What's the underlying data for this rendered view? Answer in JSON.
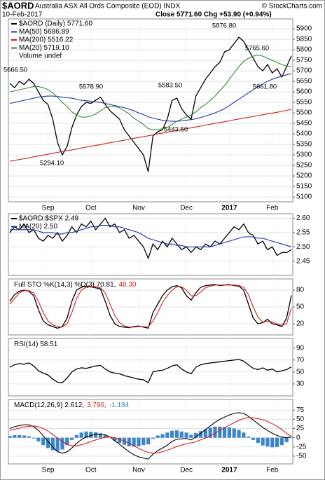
{
  "header": {
    "symbol": "$AORD",
    "name": "Australia ASX All Ords Composite (EOD) INDX",
    "date": "10-Feb-2017",
    "quote": "Close 5771.60  Chg +53.90 (+0.94%)",
    "credit": "© StockCharts.com"
  },
  "chart_data": [
    {
      "type": "line",
      "categories": [
        null,
        null,
        null,
        null,
        null,
        null,
        null,
        null,
        "Sep",
        null,
        null,
        null,
        null,
        null,
        null,
        null,
        null,
        "Oct",
        null,
        null,
        null,
        null,
        null,
        null,
        null,
        null,
        null,
        "Nov",
        null,
        null,
        null,
        null,
        null,
        null,
        null,
        null,
        null,
        "Dec",
        null,
        null,
        null,
        null,
        null,
        null,
        null,
        null,
        "2017",
        null,
        null,
        null,
        null,
        null,
        null,
        null,
        null,
        "Feb",
        null,
        null,
        null,
        null
      ],
      "ylim": [
        5077,
        5947
      ],
      "yticks": [
        5100,
        5150,
        5200,
        5250,
        5300,
        5350,
        5400,
        5450,
        5500,
        5550,
        5600,
        5650,
        5700,
        5750,
        5800,
        5850,
        5900
      ],
      "grid": true,
      "legend_note": "Volume undef",
      "annotations": [
        "5666.50",
        "5578.90",
        "5583.50",
        "5876.80",
        "5765.60",
        "5661.80",
        "5443.50",
        "5294.10"
      ],
      "series": [
        {
          "name": "$AORD (Daily) 5771.60",
          "color": "#000000",
          "values": [
            5640,
            5620,
            5650,
            5635,
            5660,
            5640,
            5600,
            5560,
            5540,
            5470,
            5360,
            5300,
            5340,
            5430,
            5490,
            5530,
            5550,
            5545,
            5560,
            5575,
            5540,
            5510,
            5490,
            5470,
            5420,
            5390,
            5360,
            5330,
            5300,
            5220,
            5390,
            5410,
            5420,
            5470,
            5560,
            5570,
            5520,
            5490,
            5470,
            5580,
            5620,
            5660,
            5690,
            5720,
            5740,
            5790,
            5800,
            5830,
            5860,
            5840,
            5800,
            5760,
            5720,
            5700,
            5730,
            5690,
            5710,
            5670,
            5720,
            5771.6
          ]
        },
        {
          "name": "MA(50) 5686.89",
          "color": "#1f2fa8",
          "values": [
            5545,
            5550,
            5555,
            5560,
            5565,
            5570,
            5575,
            5578,
            5580,
            5580,
            5578,
            5575,
            5572,
            5570,
            5565,
            5560,
            5558,
            5555,
            5552,
            5550,
            5545,
            5540,
            5535,
            5530,
            5525,
            5518,
            5510,
            5500,
            5492,
            5482,
            5475,
            5470,
            5465,
            5462,
            5460,
            5460,
            5462,
            5465,
            5468,
            5472,
            5478,
            5485,
            5492,
            5500,
            5510,
            5520,
            5535,
            5550,
            5565,
            5580,
            5595,
            5610,
            5625,
            5638,
            5650,
            5660,
            5668,
            5675,
            5681,
            5686.89
          ]
        },
        {
          "name": "MA(200) 5516.22",
          "color": "#cc1f1f",
          "values": [
            5270,
            5274,
            5278,
            5282,
            5286,
            5291,
            5295,
            5299,
            5303,
            5308,
            5312,
            5316,
            5320,
            5324,
            5328,
            5333,
            5337,
            5341,
            5345,
            5349,
            5354,
            5358,
            5362,
            5366,
            5370,
            5375,
            5379,
            5383,
            5387,
            5391,
            5395,
            5400,
            5404,
            5408,
            5412,
            5416,
            5421,
            5425,
            5429,
            5433,
            5437,
            5442,
            5446,
            5450,
            5454,
            5458,
            5462,
            5467,
            5471,
            5475,
            5479,
            5483,
            5487,
            5491,
            5495,
            5499,
            5503,
            5507,
            5512,
            5516.22
          ]
        },
        {
          "name": "MA(20) 5719.10",
          "color": "#2e8b2e",
          "values": [
            5600,
            5605,
            5610,
            5615,
            5620,
            5625,
            5625,
            5620,
            5610,
            5595,
            5575,
            5550,
            5530,
            5505,
            5490,
            5480,
            5480,
            5485,
            5495,
            5510,
            5525,
            5530,
            5530,
            5525,
            5510,
            5495,
            5475,
            5460,
            5445,
            5425,
            5420,
            5420,
            5425,
            5430,
            5445,
            5460,
            5470,
            5480,
            5490,
            5505,
            5525,
            5540,
            5560,
            5580,
            5605,
            5630,
            5660,
            5690,
            5720,
            5745,
            5760,
            5770,
            5775,
            5770,
            5760,
            5750,
            5740,
            5730,
            5722,
            5719.1
          ]
        }
      ]
    },
    {
      "type": "line",
      "ylim": [
        2.4,
        2.616
      ],
      "yticks": [
        {
          "value": 2.45,
          "label": "2.45"
        },
        {
          "value": 2.5,
          "label": "2.50"
        },
        {
          "value": 2.55,
          "label": "2.55"
        },
        {
          "value": 2.6,
          "label": "2.60"
        }
      ],
      "grid": true,
      "series": [
        {
          "name": "$AORD:$SPX 2.49",
          "color": "#000000",
          "values": [
            2.55,
            2.57,
            2.56,
            2.58,
            2.55,
            2.56,
            2.53,
            2.52,
            2.54,
            2.53,
            2.55,
            2.52,
            2.54,
            2.57,
            2.55,
            2.58,
            2.57,
            2.59,
            2.56,
            2.58,
            2.6,
            2.57,
            2.58,
            2.55,
            2.56,
            2.53,
            2.54,
            2.52,
            2.5,
            2.46,
            2.51,
            2.49,
            2.52,
            2.5,
            2.53,
            2.51,
            2.49,
            2.5,
            2.48,
            2.5,
            2.49,
            2.51,
            2.5,
            2.52,
            2.51,
            2.53,
            2.55,
            2.57,
            2.56,
            2.58,
            2.55,
            2.54,
            2.51,
            2.52,
            2.49,
            2.5,
            2.47,
            2.48,
            2.48,
            2.49
          ]
        },
        {
          "name": "MA(20) 2.50",
          "color": "#1f2fa8",
          "values": [
            2.56,
            2.56,
            2.56,
            2.56,
            2.56,
            2.56,
            2.555,
            2.55,
            2.55,
            2.55,
            2.545,
            2.545,
            2.55,
            2.55,
            2.555,
            2.56,
            2.565,
            2.57,
            2.57,
            2.575,
            2.575,
            2.575,
            2.57,
            2.57,
            2.565,
            2.56,
            2.555,
            2.55,
            2.54,
            2.53,
            2.525,
            2.52,
            2.515,
            2.51,
            2.51,
            2.505,
            2.505,
            2.5,
            2.5,
            2.5,
            2.5,
            2.5,
            2.5,
            2.505,
            2.51,
            2.515,
            2.52,
            2.525,
            2.53,
            2.535,
            2.535,
            2.535,
            2.53,
            2.53,
            2.525,
            2.52,
            2.515,
            2.51,
            2.505,
            2.5
          ]
        }
      ]
    },
    {
      "type": "line",
      "ylim": [
        0,
        100
      ],
      "yticks": [
        20,
        50,
        80
      ],
      "grid": true,
      "series": [
        {
          "name": "Full STO %K(14,3) %D(3) 70.81,",
          "color": "#000000",
          "values": [
            60,
            72,
            78,
            80,
            78,
            70,
            45,
            25,
            18,
            15,
            12,
            15,
            30,
            60,
            80,
            85,
            87,
            86,
            84,
            82,
            60,
            35,
            20,
            15,
            14,
            13,
            15,
            16,
            14,
            12,
            40,
            55,
            70,
            80,
            86,
            88,
            84,
            70,
            62,
            75,
            85,
            88,
            89,
            90,
            88,
            89,
            90,
            88,
            87,
            80,
            55,
            30,
            20,
            22,
            28,
            20,
            18,
            15,
            30,
            70.81
          ]
        },
        {
          "name": "48.30",
          "color": "#d42020",
          "values": [
            55,
            65,
            75,
            79,
            79,
            75,
            60,
            40,
            25,
            18,
            15,
            14,
            20,
            40,
            65,
            80,
            85,
            86,
            86,
            84,
            75,
            55,
            35,
            22,
            16,
            14,
            14,
            15,
            15,
            14,
            25,
            40,
            58,
            70,
            80,
            86,
            86,
            80,
            70,
            70,
            77,
            84,
            87,
            89,
            89,
            89,
            89,
            89,
            88,
            85,
            72,
            50,
            32,
            23,
            24,
            23,
            20,
            17,
            20,
            48.3
          ]
        }
      ]
    },
    {
      "type": "line",
      "ylim": [
        10,
        106
      ],
      "yticks": [
        30,
        50,
        70,
        90
      ],
      "grid": true,
      "series": [
        {
          "name": "RSI(14) 58.51",
          "color": "#000000",
          "values": [
            58,
            62,
            64,
            63,
            65,
            60,
            52,
            48,
            45,
            38,
            33,
            32,
            40,
            50,
            55,
            57,
            56,
            58,
            60,
            61,
            55,
            50,
            48,
            47,
            44,
            42,
            40,
            38,
            37,
            32,
            50,
            52,
            53,
            56,
            60,
            62,
            55,
            50,
            47,
            58,
            62,
            64,
            65,
            66,
            67,
            68,
            69,
            70,
            71,
            68,
            62,
            56,
            54,
            57,
            53,
            55,
            50,
            52,
            54,
            58.51
          ]
        }
      ]
    },
    {
      "type": "line",
      "categories": [
        null,
        null,
        null,
        null,
        null,
        null,
        null,
        null,
        "Sep",
        null,
        null,
        null,
        null,
        null,
        null,
        null,
        null,
        "Oct",
        null,
        null,
        null,
        null,
        null,
        null,
        null,
        null,
        null,
        "Nov",
        null,
        null,
        null,
        null,
        null,
        null,
        null,
        null,
        null,
        "Dec",
        null,
        null,
        null,
        null,
        null,
        null,
        null,
        null,
        "2017",
        null,
        null,
        null,
        null,
        null,
        null,
        null,
        null,
        "Feb",
        null,
        null,
        null,
        null
      ],
      "ylim": [
        -71,
        104
      ],
      "yticks": [
        -50,
        -25,
        0,
        25,
        50,
        75
      ],
      "grid": true,
      "series": [
        {
          "name": "-1.184",
          "type": "bar",
          "color": "#3a86c8",
          "values": [
            5,
            7,
            7,
            6,
            4,
            -2,
            -10,
            -20,
            -28,
            -34,
            -37,
            -32,
            -20,
            -6,
            7,
            14,
            17,
            16,
            15,
            12,
            7,
            0,
            -8,
            -14,
            -19,
            -23,
            -24,
            -23,
            -20,
            -18,
            -3,
            6,
            10,
            14,
            19,
            20,
            17,
            14,
            8,
            13,
            18,
            23,
            27,
            30,
            30,
            29,
            28,
            25,
            21,
            14,
            3,
            -6,
            -14,
            -21,
            -24,
            -26,
            -25,
            -20,
            -12,
            -1.184
          ]
        },
        {
          "name": "MACD(12,26,9) 2.612,",
          "color": "#000000",
          "values": [
            25,
            30,
            33,
            35,
            35,
            30,
            20,
            5,
            -10,
            -25,
            -38,
            -42,
            -38,
            -28,
            -15,
            -5,
            2,
            6,
            9,
            10,
            8,
            2,
            -8,
            -18,
            -28,
            -38,
            -46,
            -52,
            -55,
            -58,
            -45,
            -35,
            -28,
            -20,
            -10,
            -4,
            -3,
            -2,
            -6,
            2,
            12,
            22,
            32,
            42,
            50,
            56,
            62,
            66,
            68,
            66,
            58,
            48,
            38,
            28,
            20,
            12,
            6,
            2,
            0,
            2.612
          ]
        },
        {
          "name": "3.796,",
          "color": "#d42020",
          "values": [
            20,
            23,
            26,
            29,
            31,
            32,
            30,
            25,
            18,
            9,
            -1,
            -10,
            -18,
            -22,
            -22,
            -19,
            -15,
            -10,
            -6,
            -2,
            1,
            2,
            0,
            -4,
            -9,
            -15,
            -22,
            -29,
            -35,
            -40,
            -42,
            -41,
            -38,
            -34,
            -29,
            -24,
            -20,
            -16,
            -14,
            -11,
            -6,
            -1,
            5,
            12,
            20,
            27,
            34,
            41,
            47,
            52,
            55,
            54,
            52,
            49,
            44,
            38,
            31,
            22,
            12,
            3.796
          ]
        }
      ]
    }
  ]
}
